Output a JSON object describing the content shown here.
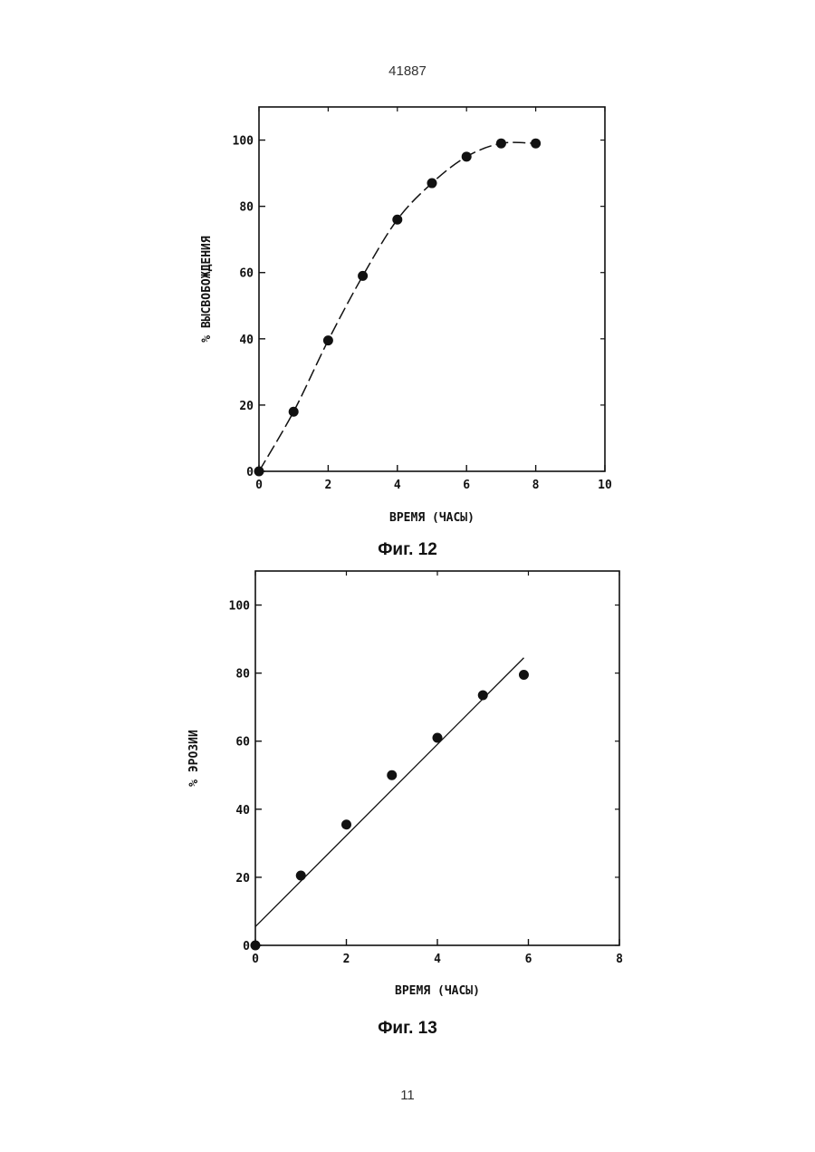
{
  "page": {
    "number_top": "41887",
    "number_bottom": "11"
  },
  "figures": [
    {
      "caption": "Фиг. 12"
    },
    {
      "caption": "Фиг. 13"
    }
  ],
  "chart_data": [
    {
      "type": "line",
      "xlabel": "ВРЕМЯ (ЧАСЫ)",
      "ylabel": "% ВЫСВОБОЖДЕНИЯ",
      "xlim": [
        0,
        10
      ],
      "ylim": [
        0,
        110
      ],
      "xticks": [
        0,
        2,
        4,
        6,
        8,
        10
      ],
      "yticks": [
        0,
        20,
        40,
        60,
        80,
        100
      ],
      "grid": false,
      "line_style": "dashed-curve",
      "series": [
        {
          "x": [
            0,
            1,
            2,
            3,
            4,
            5,
            6,
            7,
            8
          ],
          "y": [
            0,
            18,
            39.5,
            59,
            76,
            87,
            95,
            99,
            99
          ]
        }
      ]
    },
    {
      "type": "scatter",
      "xlabel": "ВРЕМЯ (ЧАСЫ)",
      "ylabel": "% ЭРОЗИИ",
      "xlim": [
        0,
        8
      ],
      "ylim": [
        0,
        110
      ],
      "xticks": [
        0,
        2,
        4,
        6,
        8
      ],
      "yticks": [
        0,
        20,
        40,
        60,
        80,
        100
      ],
      "grid": false,
      "fit_line": {
        "x": [
          0,
          5.9
        ],
        "y": [
          5.5,
          84.5
        ]
      },
      "series": [
        {
          "x": [
            0,
            1,
            2,
            3,
            4,
            5,
            5.9
          ],
          "y": [
            0,
            20.5,
            35.5,
            50,
            61,
            73.5,
            79.5
          ]
        }
      ]
    }
  ]
}
